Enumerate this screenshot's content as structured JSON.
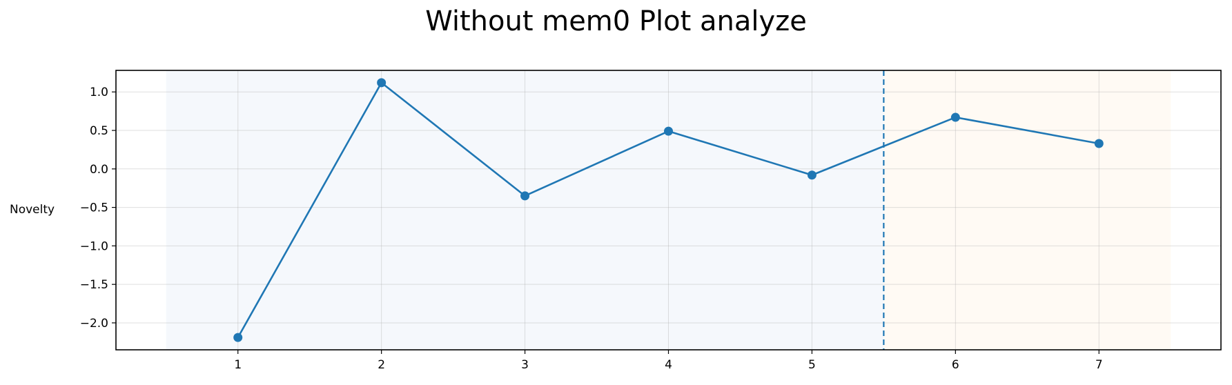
{
  "chart_data": {
    "type": "line",
    "title": "Without mem0 Plot analyze",
    "xlabel": "",
    "ylabel": "Novelty",
    "x": [
      1,
      2,
      3,
      4,
      5,
      6,
      7
    ],
    "series": [
      {
        "values": [
          -2.19,
          1.12,
          -0.35,
          0.49,
          -0.08,
          0.67,
          0.33
        ]
      }
    ],
    "xlim": [
      0.15,
      7.85
    ],
    "ylim": [
      -2.35,
      1.28
    ],
    "xticks": [
      1,
      2,
      3,
      4,
      5,
      6,
      7
    ],
    "xtick_labels": [
      "1",
      "2",
      "3",
      "4",
      "5",
      "6",
      "7"
    ],
    "yticks": [
      1.0,
      0.5,
      0.0,
      -0.5,
      -1.0,
      -1.5,
      -2.0
    ],
    "ytick_labels": [
      "1.0",
      "0.5",
      "0.0",
      "−0.5",
      "−1.0",
      "−1.5",
      "−2.0"
    ],
    "grid": true,
    "regions": [
      {
        "from": 0.5,
        "to": 5.5,
        "color": "#f5f8fc"
      },
      {
        "from": 5.5,
        "to": 7.5,
        "color": "#fffaf4"
      }
    ],
    "vline": {
      "x": 5.5,
      "style": "dashed",
      "color": "#1f77b4"
    },
    "line_color": "#1f77b4"
  }
}
